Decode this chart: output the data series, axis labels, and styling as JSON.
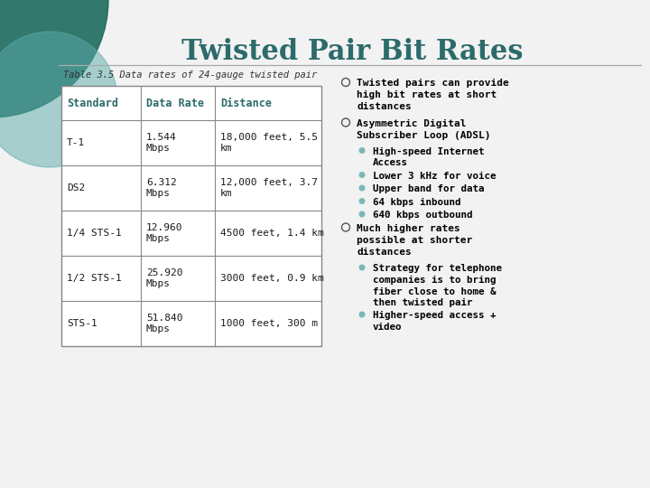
{
  "title": "Twisted Pair Bit Rates",
  "subtitle": "Table 3.5 Data rates of 24-gauge twisted pair",
  "title_color": "#2d6b6b",
  "subtitle_color": "#333333",
  "bg_color": "#f2f2f2",
  "table_headers": [
    "Standard",
    "Data Rate",
    "Distance"
  ],
  "table_rows": [
    [
      "T-1",
      "1.544\nMbps",
      "18,000 feet, 5.5\nkm"
    ],
    [
      "DS2",
      "6.312\nMbps",
      "12,000 feet, 3.7\nkm"
    ],
    [
      "1/4 STS-1",
      "12.960\nMbps",
      "4500 feet, 1.4 km"
    ],
    [
      "1/2 STS-1",
      "25.920\nMbps",
      "3000 feet, 0.9 km"
    ],
    [
      "STS-1",
      "51.840\nMbps",
      "1000 feet, 300 m"
    ]
  ],
  "table_header_text_color": "#2d6b6b",
  "table_text_color": "#1a1a1a",
  "table_border_color": "#888888",
  "circle1_color": "#1e6b5e",
  "circle1_alpha": 0.9,
  "circle2_color": "#5aabaa",
  "circle2_alpha": 0.5,
  "bullet_outline_color": "#555555",
  "subbullet_color": "#7ab8b8",
  "bullet_text_color": "#000000",
  "bullets": [
    {
      "text": "Twisted pairs can provide\nhigh bit rates at short\ndistances",
      "level": 0
    },
    {
      "text": "Asymmetric Digital\nSubscriber Loop (ADSL)",
      "level": 0
    },
    {
      "text": "High-speed Internet\nAccess",
      "level": 1
    },
    {
      "text": "Lower 3 kHz for voice",
      "level": 1
    },
    {
      "text": "Upper band for data",
      "level": 1
    },
    {
      "text": "64 kbps inbound",
      "level": 1
    },
    {
      "text": "640 kbps outbound",
      "level": 1
    },
    {
      "text": "Much higher rates\npossible at shorter\ndistances",
      "level": 0
    },
    {
      "text": "Strategy for telephone\ncompanies is to bring\nfiber close to home &\nthen twisted pair",
      "level": 1
    },
    {
      "text": "Higher-speed access +\nvideo",
      "level": 1
    }
  ]
}
